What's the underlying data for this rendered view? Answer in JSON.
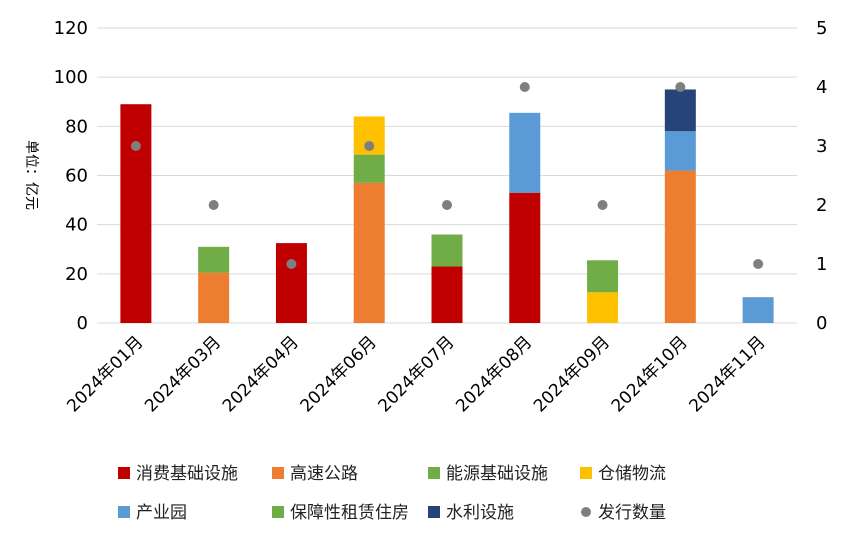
{
  "chart_data": {
    "type": "bar",
    "stacked": true,
    "ylabel": "单位：亿元",
    "ylim": [
      0,
      120
    ],
    "y2lim": [
      0,
      5
    ],
    "yticks": [
      0,
      20,
      40,
      60,
      80,
      100,
      120
    ],
    "y2ticks": [
      0,
      1,
      2,
      3,
      4,
      5
    ],
    "grid": true,
    "legend_position": "bottom",
    "categories": [
      "2024年01月",
      "2024年03月",
      "2024年04月",
      "2024年06月",
      "2024年07月",
      "2024年08月",
      "2024年09月",
      "2024年10月",
      "2024年11月"
    ],
    "series": [
      {
        "name": "消费基础设施",
        "color": "#C00000",
        "values": [
          89,
          0,
          32.5,
          0,
          23,
          53,
          0,
          0,
          0
        ]
      },
      {
        "name": "高速公路",
        "color": "#ED7D31",
        "values": [
          0,
          20.5,
          0,
          57,
          0,
          0,
          0,
          62,
          0
        ]
      },
      {
        "name": "能源基础设施",
        "color": "#70AD47",
        "values": [
          0,
          0,
          0,
          11.5,
          0,
          0,
          0,
          0,
          0
        ]
      },
      {
        "name": "仓储物流",
        "color": "#FFC000",
        "values": [
          0,
          0,
          0,
          15.5,
          0,
          0,
          12.5,
          0,
          0
        ]
      },
      {
        "name": "产业园",
        "color": "#5B9BD5",
        "values": [
          0,
          0,
          0,
          0,
          0,
          32.5,
          0,
          16,
          10.5
        ]
      },
      {
        "name": "保障性租赁住房",
        "color": "#70AD47",
        "values": [
          0,
          10.5,
          0,
          0,
          13,
          0,
          13,
          0,
          0
        ]
      },
      {
        "name": "水利设施",
        "color": "#264478",
        "values": [
          0,
          0,
          0,
          0,
          0,
          0,
          0,
          17,
          0
        ]
      }
    ],
    "scatter": {
      "name": "发行数量",
      "color": "#7F7F7F",
      "axis": "right",
      "values": [
        3,
        2,
        1,
        3,
        2,
        4,
        2,
        4,
        1
      ]
    }
  }
}
